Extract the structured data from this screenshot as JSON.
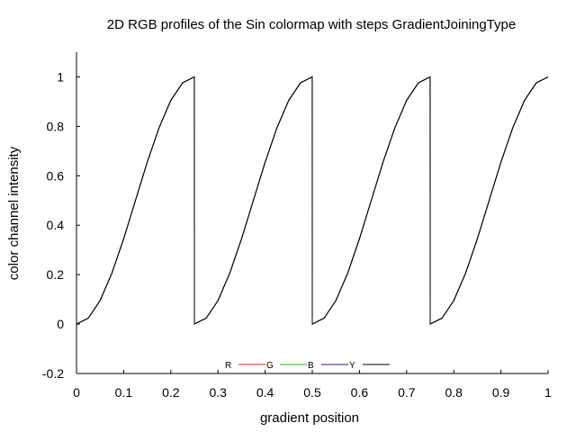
{
  "chart_data": {
    "type": "line",
    "title": "2D RGB profiles of the Sin colormap with steps GradientJoiningType",
    "xlabel": "gradient position",
    "ylabel": "color channel intensity",
    "xlim": [
      0,
      1
    ],
    "ylim": [
      -0.2,
      1.1
    ],
    "xticks": [
      "0",
      "0.1",
      "0.2",
      "0.3",
      "0.4",
      "0.5",
      "0.6",
      "0.7",
      "0.8",
      "0.9",
      "1"
    ],
    "yticks": [
      "-0.2",
      "0",
      "0.2",
      "0.4",
      "0.6",
      "0.8",
      "1"
    ],
    "xtick_values": [
      0,
      0.1,
      0.2,
      0.3,
      0.4,
      0.5,
      0.6,
      0.7,
      0.8,
      0.9,
      1
    ],
    "ytick_values": [
      -0.2,
      0,
      0.2,
      0.4,
      0.6,
      0.8,
      1
    ],
    "grid": false,
    "legend_position": "bottom-center",
    "steps": 4,
    "series": [
      {
        "name": "R",
        "color": "#e41a1c",
        "x": [
          0,
          0.025,
          0.05,
          0.075,
          0.1,
          0.125,
          0.15,
          0.175,
          0.2,
          0.225,
          0.2499,
          0.25,
          0.275,
          0.3,
          0.325,
          0.35,
          0.375,
          0.4,
          0.425,
          0.45,
          0.475,
          0.4999,
          0.5,
          0.525,
          0.55,
          0.575,
          0.6,
          0.625,
          0.65,
          0.675,
          0.7,
          0.725,
          0.7499,
          0.75,
          0.775,
          0.8,
          0.825,
          0.85,
          0.875,
          0.9,
          0.925,
          0.95,
          0.975,
          1
        ],
        "y": [
          0,
          0.024,
          0.095,
          0.206,
          0.345,
          0.5,
          0.655,
          0.794,
          0.905,
          0.976,
          1,
          0,
          0.024,
          0.095,
          0.206,
          0.345,
          0.5,
          0.655,
          0.794,
          0.905,
          0.976,
          1,
          0,
          0.024,
          0.095,
          0.206,
          0.345,
          0.5,
          0.655,
          0.794,
          0.905,
          0.976,
          1,
          0,
          0.024,
          0.095,
          0.206,
          0.345,
          0.5,
          0.655,
          0.794,
          0.905,
          0.976,
          1
        ]
      },
      {
        "name": "G",
        "color": "#00cc00",
        "x": [
          0,
          0.025,
          0.05,
          0.075,
          0.1,
          0.125,
          0.15,
          0.175,
          0.2,
          0.225,
          0.2499,
          0.25,
          0.275,
          0.3,
          0.325,
          0.35,
          0.375,
          0.4,
          0.425,
          0.45,
          0.475,
          0.4999,
          0.5,
          0.525,
          0.55,
          0.575,
          0.6,
          0.625,
          0.65,
          0.675,
          0.7,
          0.725,
          0.7499,
          0.75,
          0.775,
          0.8,
          0.825,
          0.85,
          0.875,
          0.9,
          0.925,
          0.95,
          0.975,
          1
        ],
        "y": [
          0,
          0.024,
          0.095,
          0.206,
          0.345,
          0.5,
          0.655,
          0.794,
          0.905,
          0.976,
          1,
          0,
          0.024,
          0.095,
          0.206,
          0.345,
          0.5,
          0.655,
          0.794,
          0.905,
          0.976,
          1,
          0,
          0.024,
          0.095,
          0.206,
          0.345,
          0.5,
          0.655,
          0.794,
          0.905,
          0.976,
          1,
          0,
          0.024,
          0.095,
          0.206,
          0.345,
          0.5,
          0.655,
          0.794,
          0.905,
          0.976,
          1
        ]
      },
      {
        "name": "B",
        "color": "#1a1aa6",
        "x": [
          0,
          0.025,
          0.05,
          0.075,
          0.1,
          0.125,
          0.15,
          0.175,
          0.2,
          0.225,
          0.2499,
          0.25,
          0.275,
          0.3,
          0.325,
          0.35,
          0.375,
          0.4,
          0.425,
          0.45,
          0.475,
          0.4999,
          0.5,
          0.525,
          0.55,
          0.575,
          0.6,
          0.625,
          0.65,
          0.675,
          0.7,
          0.725,
          0.7499,
          0.75,
          0.775,
          0.8,
          0.825,
          0.85,
          0.875,
          0.9,
          0.925,
          0.95,
          0.975,
          1
        ],
        "y": [
          0,
          0.024,
          0.095,
          0.206,
          0.345,
          0.5,
          0.655,
          0.794,
          0.905,
          0.976,
          1,
          0,
          0.024,
          0.095,
          0.206,
          0.345,
          0.5,
          0.655,
          0.794,
          0.905,
          0.976,
          1,
          0,
          0.024,
          0.095,
          0.206,
          0.345,
          0.5,
          0.655,
          0.794,
          0.905,
          0.976,
          1,
          0,
          0.024,
          0.095,
          0.206,
          0.345,
          0.5,
          0.655,
          0.794,
          0.905,
          0.976,
          1
        ]
      },
      {
        "name": "Y",
        "color": "#000000",
        "x": [
          0,
          0.025,
          0.05,
          0.075,
          0.1,
          0.125,
          0.15,
          0.175,
          0.2,
          0.225,
          0.2499,
          0.25,
          0.275,
          0.3,
          0.325,
          0.35,
          0.375,
          0.4,
          0.425,
          0.45,
          0.475,
          0.4999,
          0.5,
          0.525,
          0.55,
          0.575,
          0.6,
          0.625,
          0.65,
          0.675,
          0.7,
          0.725,
          0.7499,
          0.75,
          0.775,
          0.8,
          0.825,
          0.85,
          0.875,
          0.9,
          0.925,
          0.95,
          0.975,
          1
        ],
        "y": [
          0,
          0.024,
          0.095,
          0.206,
          0.345,
          0.5,
          0.655,
          0.794,
          0.905,
          0.976,
          1,
          0,
          0.024,
          0.095,
          0.206,
          0.345,
          0.5,
          0.655,
          0.794,
          0.905,
          0.976,
          1,
          0,
          0.024,
          0.095,
          0.206,
          0.345,
          0.5,
          0.655,
          0.794,
          0.905,
          0.976,
          1,
          0,
          0.024,
          0.095,
          0.206,
          0.345,
          0.5,
          0.655,
          0.794,
          0.905,
          0.976,
          1
        ]
      }
    ]
  }
}
